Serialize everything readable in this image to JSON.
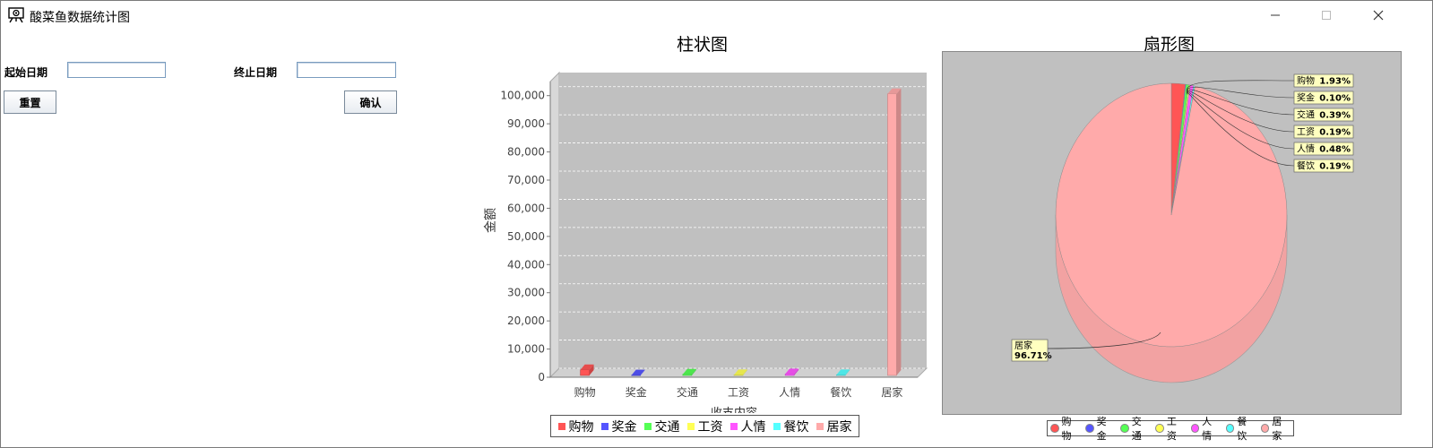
{
  "window": {
    "title": "酸菜鱼数据统计图",
    "icon": "easel-icon"
  },
  "form": {
    "start_label": "起始日期",
    "start_value": "",
    "end_label": "终止日期",
    "end_value": "",
    "reset_label": "重置",
    "confirm_label": "确认"
  },
  "bar_panel": {
    "title": "柱状图"
  },
  "pie_panel": {
    "title": "扇形图"
  },
  "colors": {
    "plot_bg": "#c0c0c0",
    "gridline": "#ffffff"
  },
  "chart_data": [
    {
      "type": "bar",
      "title": "柱状图",
      "xlabel": "收支内容",
      "ylabel": "金额",
      "ylim": [
        0,
        105000
      ],
      "yticks": [
        0,
        10000,
        20000,
        30000,
        40000,
        50000,
        60000,
        70000,
        80000,
        90000,
        100000
      ],
      "ytick_labels": [
        "0",
        "10,000",
        "20,000",
        "30,000",
        "40,000",
        "50,000",
        "60,000",
        "70,000",
        "80,000",
        "90,000",
        "100,000"
      ],
      "categories": [
        "购物",
        "奖金",
        "交通",
        "工资",
        "人情",
        "餐饮",
        "居家"
      ],
      "values": [
        2000,
        100,
        400,
        200,
        500,
        200,
        100000
      ],
      "colors": [
        "#ff5555",
        "#5555ff",
        "#55ff55",
        "#ffff55",
        "#ff55ff",
        "#55ffff",
        "#ffaaaa"
      ],
      "grid": true,
      "legend": "bottom"
    },
    {
      "type": "pie",
      "title": "扇形图",
      "labels": [
        "购物",
        "奖金",
        "交通",
        "工资",
        "人情",
        "餐饮",
        "居家"
      ],
      "values": [
        1.93,
        0.1,
        0.39,
        0.19,
        0.48,
        0.19,
        96.71
      ],
      "value_labels": [
        "1.93%",
        "0.10%",
        "0.39%",
        "0.19%",
        "0.48%",
        "0.19%",
        "96.71%"
      ],
      "colors": [
        "#ff5555",
        "#5555ff",
        "#55ff55",
        "#ffff55",
        "#ff55ff",
        "#55ffff",
        "#ffaaaa"
      ],
      "legend": "bottom"
    }
  ]
}
